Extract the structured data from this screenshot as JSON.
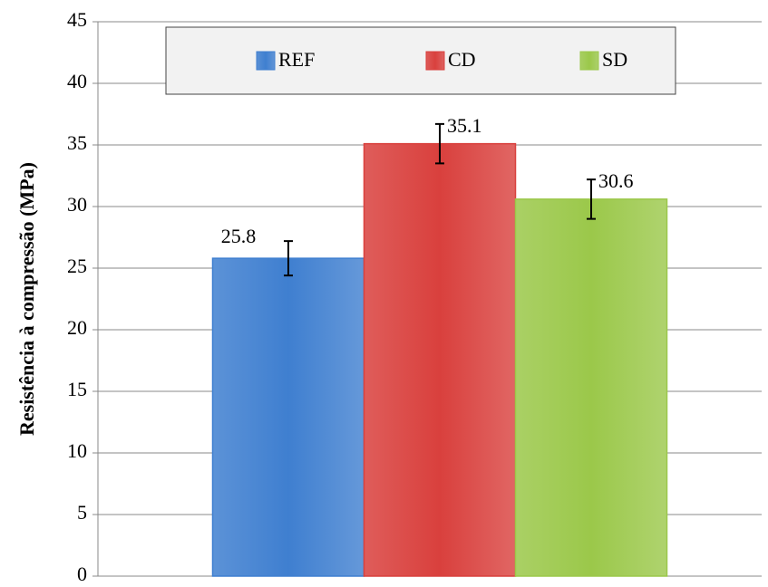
{
  "chart_data": {
    "type": "bar",
    "ylabel": "Resistência à compressão (MPa)",
    "categories": [
      null
    ],
    "series": [
      {
        "name": "REF",
        "color": "#3f7fd0",
        "values": [
          25.8
        ],
        "errors": [
          1.4
        ]
      },
      {
        "name": "CD",
        "color": "#d9403d",
        "values": [
          35.1
        ],
        "errors": [
          1.6
        ]
      },
      {
        "name": "SD",
        "color": "#9bc84a",
        "values": [
          30.6
        ],
        "errors": [
          1.6
        ]
      }
    ],
    "ylim": [
      0,
      45
    ],
    "yticks": [
      0,
      5,
      10,
      15,
      20,
      25,
      30,
      35,
      40,
      45
    ],
    "grid": true,
    "legend": "top"
  }
}
